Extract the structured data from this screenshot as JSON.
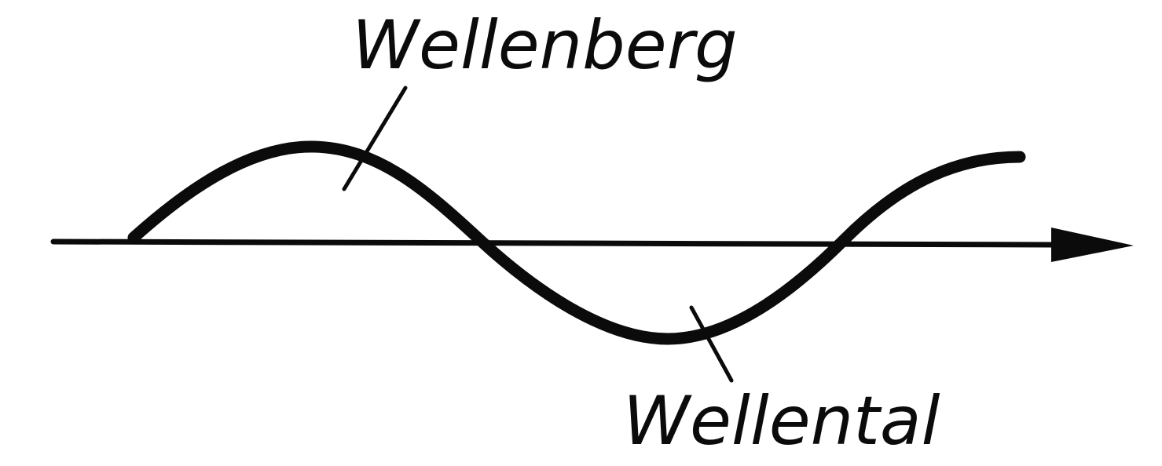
{
  "labels": {
    "crest": "Wellenberg",
    "trough": "Wellental"
  },
  "colors": {
    "ink": "#0b0b0b",
    "background": "#ffffff"
  }
}
